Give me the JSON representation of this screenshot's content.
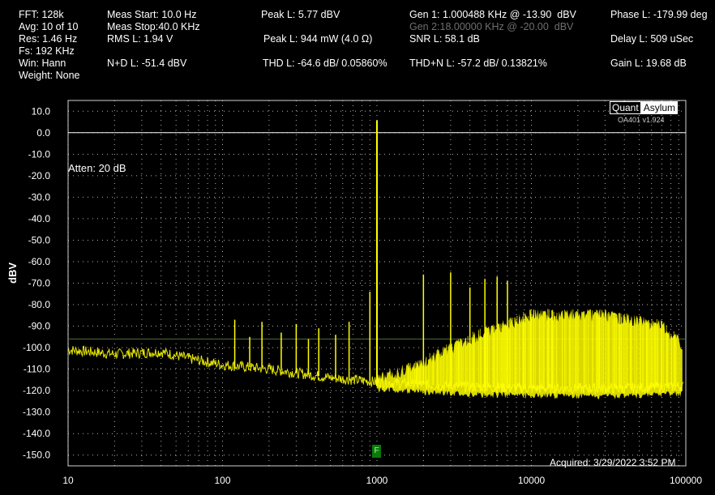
{
  "stats": {
    "fft": "FFT: 128k",
    "avg": "Avg: 10 of 10",
    "res": "Res: 1.46 Hz",
    "fs": "Fs: 192 KHz",
    "win": "Win: Hann",
    "weight": "Weight: None",
    "meas_start": "Meas Start: 10.0 Hz",
    "meas_stop": "Meas Stop:40.0 KHz",
    "rms": "RMS L: 1.94 V",
    "nd": "N+D L: -51.4 dBV",
    "peak_dbv": "Peak L: 5.77 dBV",
    "peak_mw": "Peak L: 944 mW (4.0 Ω)",
    "thd": "THD L: -64.6 dB/ 0.05860%",
    "gen1": "Gen 1: 1.000488 KHz @ -13.90  dBV",
    "gen2": "Gen 2:18.00000 KHz @ -20.00  dBV",
    "snr": "SNR L: 58.1 dB",
    "thdn": "THD+N L: -57.2 dB/ 0.13821%",
    "phase": "Phase L: -179.99 deg",
    "delay": "Delay L: 509 uSec",
    "gain": "Gain L: 19.68 dB"
  },
  "brand": {
    "quant": "Quant",
    "asylum": "Asylum",
    "version": "OA401 v1.924"
  },
  "atten_label": "Atten: 20 dB",
  "acquired": "Acquired: 3/29/2022  3:52 PM",
  "marker": "F",
  "colors": {
    "trace": "#ffff00",
    "grid": "#ffffff",
    "ref_line": "#ffffff",
    "noise_line": "#4a6a3a"
  },
  "chart_data": {
    "type": "line",
    "ylabel": "dBV",
    "xscale": "log",
    "xlim": [
      10,
      100000
    ],
    "ylim": [
      -155,
      15
    ],
    "x_ticks": [
      "10",
      "100",
      "1000",
      "10000",
      "100000"
    ],
    "y_ticks": [
      "10.0",
      "0.0",
      "-10.0",
      "-20.0",
      "-30.0",
      "-40.0",
      "-50.0",
      "-60.0",
      "-70.0",
      "-80.0",
      "-90.0",
      "-100.0",
      "-110.0",
      "-120.0",
      "-130.0",
      "-140.0",
      "-150.0"
    ],
    "ref_level": 0,
    "noise_level": -96,
    "fundamental": {
      "freq": 1000,
      "level": 5.77
    },
    "harmonics": [
      {
        "freq": 120,
        "level": -87
      },
      {
        "freq": 150,
        "level": -95
      },
      {
        "freq": 180,
        "level": -88
      },
      {
        "freq": 240,
        "level": -93
      },
      {
        "freq": 300,
        "level": -89
      },
      {
        "freq": 360,
        "level": -96
      },
      {
        "freq": 420,
        "level": -91
      },
      {
        "freq": 540,
        "level": -94
      },
      {
        "freq": 660,
        "level": -88
      },
      {
        "freq": 900,
        "level": -74
      },
      {
        "freq": 2000,
        "level": -66
      },
      {
        "freq": 3000,
        "level": -65
      },
      {
        "freq": 4000,
        "level": -72
      },
      {
        "freq": 5000,
        "level": -68
      },
      {
        "freq": 6000,
        "level": -67
      },
      {
        "freq": 7000,
        "level": -69
      }
    ],
    "noise_floor": [
      {
        "freq": 10,
        "level": -101
      },
      {
        "freq": 20,
        "level": -103
      },
      {
        "freq": 40,
        "level": -102
      },
      {
        "freq": 60,
        "level": -105
      },
      {
        "freq": 100,
        "level": -108
      },
      {
        "freq": 200,
        "level": -110
      },
      {
        "freq": 500,
        "level": -114
      },
      {
        "freq": 1000,
        "level": -116
      },
      {
        "freq": 3000,
        "level": -118
      },
      {
        "freq": 10000,
        "level": -119
      },
      {
        "freq": 40000,
        "level": -119
      },
      {
        "freq": 90000,
        "level": -118
      }
    ],
    "noise_top": [
      {
        "freq": 1000,
        "level": -112
      },
      {
        "freq": 2000,
        "level": -104
      },
      {
        "freq": 4000,
        "level": -93
      },
      {
        "freq": 10000,
        "level": -82
      },
      {
        "freq": 30000,
        "level": -82
      },
      {
        "freq": 70000,
        "level": -87
      },
      {
        "freq": 95000,
        "level": -96
      }
    ]
  }
}
